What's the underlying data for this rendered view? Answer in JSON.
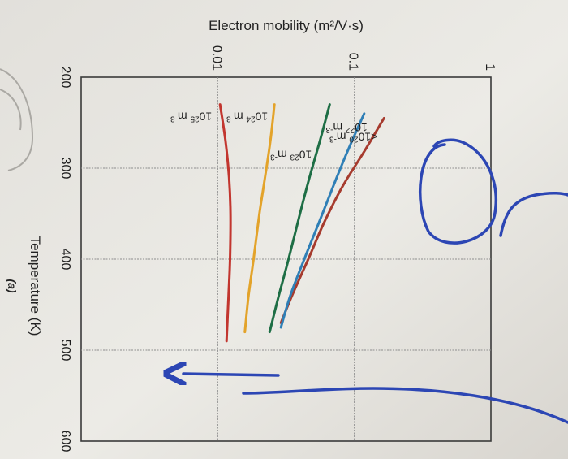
{
  "chart_data": {
    "type": "line",
    "title": "",
    "subfigure_label": "(a)",
    "xlabel": "Temperature (K)",
    "ylabel": "Electron mobility (m²/V·s)",
    "x_scale": "linear",
    "y_scale": "log",
    "xlim": [
      200,
      600
    ],
    "ylim": [
      0.001,
      1
    ],
    "x_ticks": [
      200,
      300,
      400,
      500,
      600
    ],
    "x_tick_labels": [
      "200",
      "300",
      "400",
      "500",
      "600"
    ],
    "y_ticks": [
      0.01,
      0.1,
      1
    ],
    "y_tick_labels": [
      "0.01",
      "0.1",
      "1"
    ],
    "grid": true,
    "colors": {
      "paper": "#eceae5",
      "axis": "#3a3a3a",
      "grid": "#8d8d8d",
      "pen": "#2c46b4"
    },
    "series": [
      {
        "name": "<10^20 m^-3",
        "label_main": "<10",
        "label_exp": "20",
        "label_unit": " m",
        "label_unit_exp": "-3",
        "color": "#a63b2e",
        "x": [
          245,
          280,
          320,
          360,
          400,
          440,
          470
        ],
        "y": [
          0.165,
          0.12,
          0.082,
          0.06,
          0.046,
          0.035,
          0.029
        ]
      },
      {
        "name": "10^22 m^-3",
        "label_main": "10",
        "label_exp": "22",
        "label_unit": " m",
        "label_unit_exp": "-3",
        "color": "#2f7fb6",
        "x": [
          240,
          280,
          320,
          360,
          400,
          440,
          475
        ],
        "y": [
          0.118,
          0.09,
          0.07,
          0.055,
          0.043,
          0.034,
          0.029
        ]
      },
      {
        "name": "10^23 m^-3",
        "label_main": "10",
        "label_exp": "23",
        "label_unit": " m",
        "label_unit_exp": "-3",
        "color": "#1e6e45",
        "x": [
          230,
          270,
          310,
          350,
          400,
          440,
          480
        ],
        "y": [
          0.066,
          0.056,
          0.047,
          0.04,
          0.033,
          0.028,
          0.024
        ]
      },
      {
        "name": "10^24 m^-3",
        "label_main": "10",
        "label_exp": "24",
        "label_unit": " m",
        "label_unit_exp": "-3",
        "color": "#e3a32a",
        "x": [
          230,
          270,
          310,
          350,
          400,
          440,
          480
        ],
        "y": [
          0.026,
          0.0243,
          0.0222,
          0.0202,
          0.0183,
          0.0168,
          0.0158
        ]
      },
      {
        "name": "10^25 m^-3",
        "label_main": "10",
        "label_exp": "25",
        "label_unit": " m",
        "label_unit_exp": "-3",
        "color": "#c2362f",
        "x": [
          230,
          270,
          310,
          350,
          400,
          440,
          490
        ],
        "y": [
          0.0104,
          0.0114,
          0.0121,
          0.0124,
          0.0123,
          0.012,
          0.0116
        ]
      }
    ]
  }
}
